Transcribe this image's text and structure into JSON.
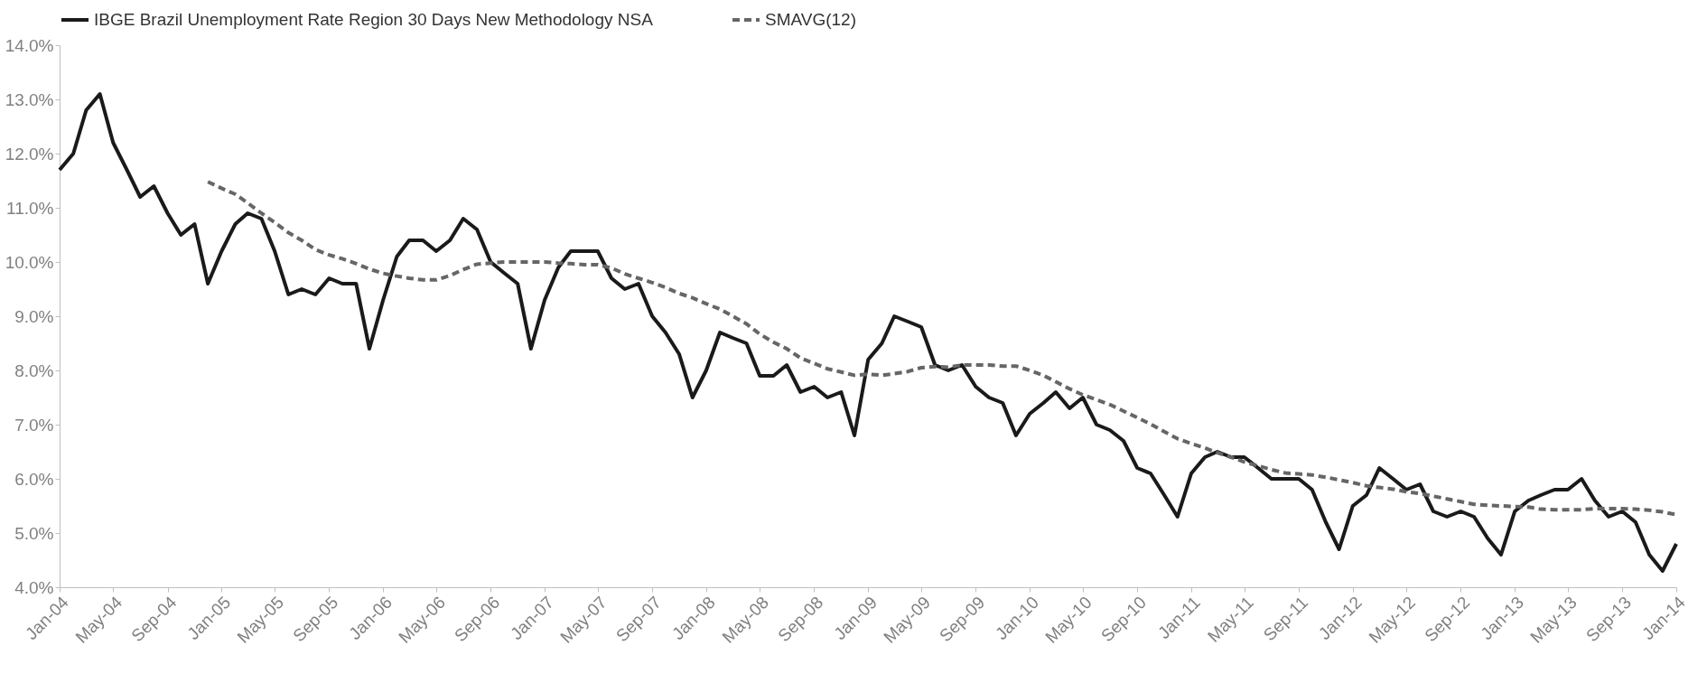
{
  "chart_data": {
    "type": "line",
    "x": [
      "2004-01",
      "2004-02",
      "2004-03",
      "2004-04",
      "2004-05",
      "2004-06",
      "2004-07",
      "2004-08",
      "2004-09",
      "2004-10",
      "2004-11",
      "2004-12",
      "2005-01",
      "2005-02",
      "2005-03",
      "2005-04",
      "2005-05",
      "2005-06",
      "2005-07",
      "2005-08",
      "2005-09",
      "2005-10",
      "2005-11",
      "2005-12",
      "2006-01",
      "2006-02",
      "2006-03",
      "2006-04",
      "2006-05",
      "2006-06",
      "2006-07",
      "2006-08",
      "2006-09",
      "2006-10",
      "2006-11",
      "2006-12",
      "2007-01",
      "2007-02",
      "2007-03",
      "2007-04",
      "2007-05",
      "2007-06",
      "2007-07",
      "2007-08",
      "2007-09",
      "2007-10",
      "2007-11",
      "2007-12",
      "2008-01",
      "2008-02",
      "2008-03",
      "2008-04",
      "2008-05",
      "2008-06",
      "2008-07",
      "2008-08",
      "2008-09",
      "2008-10",
      "2008-11",
      "2008-12",
      "2009-01",
      "2009-02",
      "2009-03",
      "2009-04",
      "2009-05",
      "2009-06",
      "2009-07",
      "2009-08",
      "2009-09",
      "2009-10",
      "2009-11",
      "2009-12",
      "2010-01",
      "2010-02",
      "2010-03",
      "2010-04",
      "2010-05",
      "2010-06",
      "2010-07",
      "2010-08",
      "2010-09",
      "2010-10",
      "2010-11",
      "2010-12",
      "2011-01",
      "2011-02",
      "2011-03",
      "2011-04",
      "2011-05",
      "2011-06",
      "2011-07",
      "2011-08",
      "2011-09",
      "2011-10",
      "2011-11",
      "2011-12",
      "2012-01",
      "2012-02",
      "2012-03",
      "2012-04",
      "2012-05",
      "2012-06",
      "2012-07",
      "2012-08",
      "2012-09",
      "2012-10",
      "2012-11",
      "2012-12",
      "2013-01",
      "2013-02",
      "2013-03",
      "2013-04",
      "2013-05",
      "2013-06",
      "2013-07",
      "2013-08",
      "2013-09",
      "2013-10",
      "2013-11",
      "2013-12",
      "2014-01"
    ],
    "series": [
      {
        "name": "IBGE Brazil Unemployment Rate Region 30 Days New Methodology NSA",
        "color": "#1a1a1a",
        "line_style": "solid",
        "values": [
          11.7,
          12.0,
          12.8,
          13.1,
          12.2,
          11.7,
          11.2,
          11.4,
          10.9,
          10.5,
          10.7,
          9.6,
          10.2,
          10.7,
          10.9,
          10.8,
          10.2,
          9.4,
          9.5,
          9.4,
          9.7,
          9.6,
          9.6,
          8.4,
          9.3,
          10.1,
          10.4,
          10.4,
          10.2,
          10.4,
          10.8,
          10.6,
          10.0,
          9.8,
          9.6,
          8.4,
          9.3,
          9.9,
          10.2,
          10.2,
          10.2,
          9.7,
          9.5,
          9.6,
          9.0,
          8.7,
          8.3,
          7.5,
          8.0,
          8.7,
          8.6,
          8.5,
          7.9,
          7.9,
          8.1,
          7.6,
          7.7,
          7.5,
          7.6,
          6.8,
          8.2,
          8.5,
          9.0,
          8.9,
          8.8,
          8.1,
          8.0,
          8.1,
          7.7,
          7.5,
          7.4,
          6.8,
          7.2,
          7.4,
          7.6,
          7.3,
          7.5,
          7.0,
          6.9,
          6.7,
          6.2,
          6.1,
          5.7,
          5.3,
          6.1,
          6.4,
          6.5,
          6.4,
          6.4,
          6.2,
          6.0,
          6.0,
          6.0,
          5.8,
          5.2,
          4.7,
          5.5,
          5.7,
          6.2,
          6.0,
          5.8,
          5.9,
          5.4,
          5.3,
          5.4,
          5.3,
          4.9,
          4.6,
          5.4,
          5.6,
          5.7,
          5.8,
          5.8,
          6.0,
          5.6,
          5.3,
          5.4,
          5.2,
          4.6,
          4.3,
          4.8
        ]
      },
      {
        "name": "SMAVG(12)",
        "color": "#666666",
        "line_style": "dashed",
        "values": [
          null,
          null,
          null,
          null,
          null,
          null,
          null,
          null,
          null,
          null,
          null,
          11.48,
          11.36,
          11.25,
          11.09,
          10.9,
          10.73,
          10.54,
          10.4,
          10.23,
          10.13,
          10.06,
          9.97,
          9.87,
          9.79,
          9.74,
          9.7,
          9.67,
          9.67,
          9.75,
          9.86,
          9.96,
          9.98,
          10.0,
          10.0,
          10.0,
          10.0,
          9.98,
          9.97,
          9.95,
          9.95,
          9.89,
          9.78,
          9.7,
          9.62,
          9.53,
          9.42,
          9.34,
          9.23,
          9.13,
          9.0,
          8.86,
          8.67,
          8.52,
          8.4,
          8.23,
          8.13,
          8.03,
          7.97,
          7.91,
          7.93,
          7.91,
          7.94,
          7.98,
          8.05,
          8.07,
          8.06,
          8.1,
          8.1,
          8.1,
          8.08,
          8.08,
          8.0,
          7.91,
          7.79,
          7.66,
          7.55,
          7.46,
          7.37,
          7.25,
          7.13,
          7.01,
          6.87,
          6.74,
          6.65,
          6.57,
          6.48,
          6.4,
          6.31,
          6.24,
          6.17,
          6.11,
          6.09,
          6.07,
          6.03,
          5.98,
          5.93,
          5.87,
          5.84,
          5.81,
          5.76,
          5.73,
          5.68,
          5.63,
          5.58,
          5.53,
          5.51,
          5.5,
          5.49,
          5.48,
          5.44,
          5.43,
          5.43,
          5.43,
          5.45,
          5.45,
          5.45,
          5.44,
          5.42,
          5.39,
          5.34
        ]
      }
    ],
    "xlim": [
      "2004-01",
      "2014-01"
    ],
    "xticks": [
      {
        "value": "2004-01",
        "label": "Jan-04"
      },
      {
        "value": "2004-05",
        "label": "May-04"
      },
      {
        "value": "2004-09",
        "label": "Sep-04"
      },
      {
        "value": "2005-01",
        "label": "Jan-05"
      },
      {
        "value": "2005-05",
        "label": "May-05"
      },
      {
        "value": "2005-09",
        "label": "Sep-05"
      },
      {
        "value": "2006-01",
        "label": "Jan-06"
      },
      {
        "value": "2006-05",
        "label": "May-06"
      },
      {
        "value": "2006-09",
        "label": "Sep-06"
      },
      {
        "value": "2007-01",
        "label": "Jan-07"
      },
      {
        "value": "2007-05",
        "label": "May-07"
      },
      {
        "value": "2007-09",
        "label": "Sep-07"
      },
      {
        "value": "2008-01",
        "label": "Jan-08"
      },
      {
        "value": "2008-05",
        "label": "May-08"
      },
      {
        "value": "2008-09",
        "label": "Sep-08"
      },
      {
        "value": "2009-01",
        "label": "Jan-09"
      },
      {
        "value": "2009-05",
        "label": "May-09"
      },
      {
        "value": "2009-09",
        "label": "Sep-09"
      },
      {
        "value": "2010-01",
        "label": "Jan-10"
      },
      {
        "value": "2010-05",
        "label": "May-10"
      },
      {
        "value": "2010-09",
        "label": "Sep-10"
      },
      {
        "value": "2011-01",
        "label": "Jan-11"
      },
      {
        "value": "2011-05",
        "label": "May-11"
      },
      {
        "value": "2011-09",
        "label": "Sep-11"
      },
      {
        "value": "2012-01",
        "label": "Jan-12"
      },
      {
        "value": "2012-05",
        "label": "May-12"
      },
      {
        "value": "2012-09",
        "label": "Sep-12"
      },
      {
        "value": "2013-01",
        "label": "Jan-13"
      },
      {
        "value": "2013-05",
        "label": "May-13"
      },
      {
        "value": "2013-09",
        "label": "Sep-13"
      },
      {
        "value": "2014-01",
        "label": "Jan-14"
      }
    ],
    "ylim": [
      4,
      14
    ],
    "yticks": [
      {
        "value": 4,
        "label": "4.0%"
      },
      {
        "value": 5,
        "label": "5.0%"
      },
      {
        "value": 6,
        "label": "6.0%"
      },
      {
        "value": 7,
        "label": "7.0%"
      },
      {
        "value": 8,
        "label": "8.0%"
      },
      {
        "value": 9,
        "label": "9.0%"
      },
      {
        "value": 10,
        "label": "10.0%"
      },
      {
        "value": 11,
        "label": "11.0%"
      },
      {
        "value": 12,
        "label": "12.0%"
      },
      {
        "value": 13,
        "label": "13.0%"
      },
      {
        "value": 14,
        "label": "14.0%"
      }
    ],
    "grid": false,
    "legend": "top"
  }
}
